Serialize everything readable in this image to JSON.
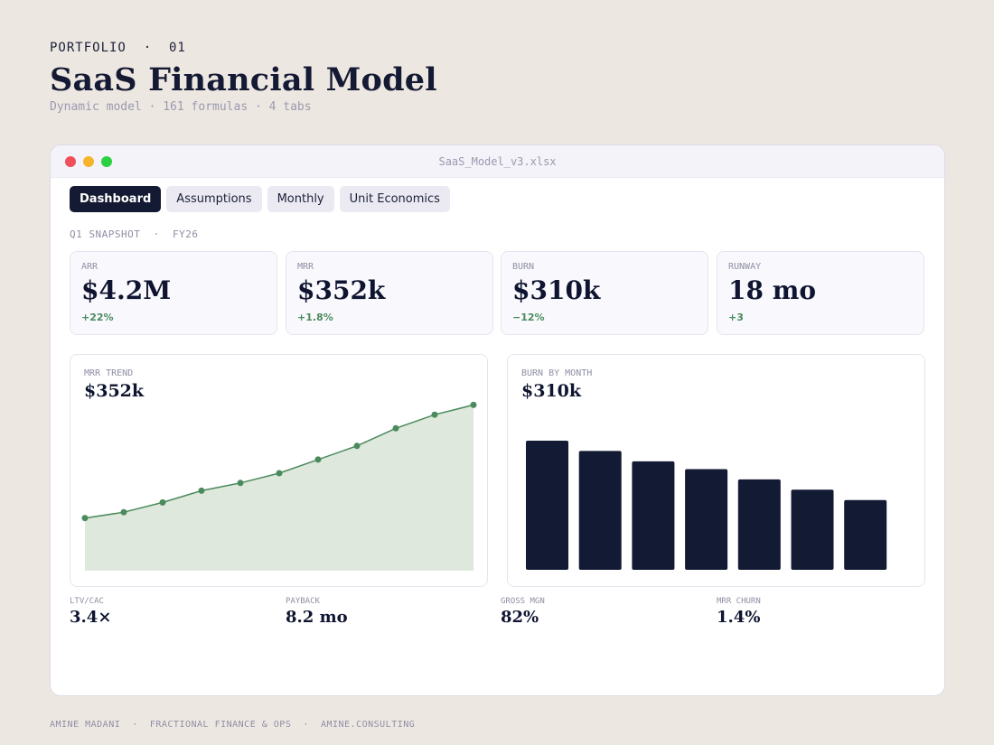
{
  "header": {
    "eyebrow": "PORTFOLIO  ·  01",
    "title": "SaaS Financial Model",
    "subtitle": "Dynamic model · 161 formulas · 4 tabs"
  },
  "window": {
    "filename": "SaaS_Model_v3.xlsx",
    "tabs": [
      {
        "label": "Dashboard",
        "active": true
      },
      {
        "label": "Assumptions",
        "active": false
      },
      {
        "label": "Monthly",
        "active": false
      },
      {
        "label": "Unit Economics",
        "active": false
      }
    ],
    "section_label": "Q1 SNAPSHOT  ·  FY26"
  },
  "kpis": [
    {
      "label": "ARR",
      "value": "$4.2M",
      "delta": "+22%"
    },
    {
      "label": "MRR",
      "value": "$352k",
      "delta": "+1.8%"
    },
    {
      "label": "BURN",
      "value": "$310k",
      "delta": "−12%"
    },
    {
      "label": "RUNWAY",
      "value": "18 mo",
      "delta": "+3"
    }
  ],
  "panels": {
    "mrr": {
      "label": "MRR TREND",
      "value": "$352k"
    },
    "burn": {
      "label": "BURN BY MONTH",
      "value": "$310k"
    }
  },
  "metrics": [
    {
      "label": "LTV/CAC",
      "value": "3.4×"
    },
    {
      "label": "PAYBACK",
      "value": "8.2 mo"
    },
    {
      "label": "GROSS MGN",
      "value": "82%"
    },
    {
      "label": "MRR CHURN",
      "value": "1.4%"
    }
  ],
  "footer": "AMINE MADANI  ·  FRACTIONAL FINANCE & OPS  ·  AMINE.CONSULTING",
  "colors": {
    "accent_green": "#4a8a5c",
    "area_fill": "#dfe8dc",
    "bar_navy": "#131a33",
    "dot_red": "#f0505a",
    "dot_yellow": "#f7b42b",
    "dot_green": "#2bd142"
  },
  "chart_data": [
    {
      "type": "area",
      "series": [
        {
          "values": [
            0.27,
            0.3,
            0.35,
            0.41,
            0.45,
            0.5,
            0.57,
            0.64,
            0.73,
            0.8,
            0.85
          ]
        }
      ]
    },
    {
      "type": "bar",
      "values": [
        1.0,
        0.92,
        0.84,
        0.78,
        0.7,
        0.62,
        0.54
      ]
    }
  ]
}
